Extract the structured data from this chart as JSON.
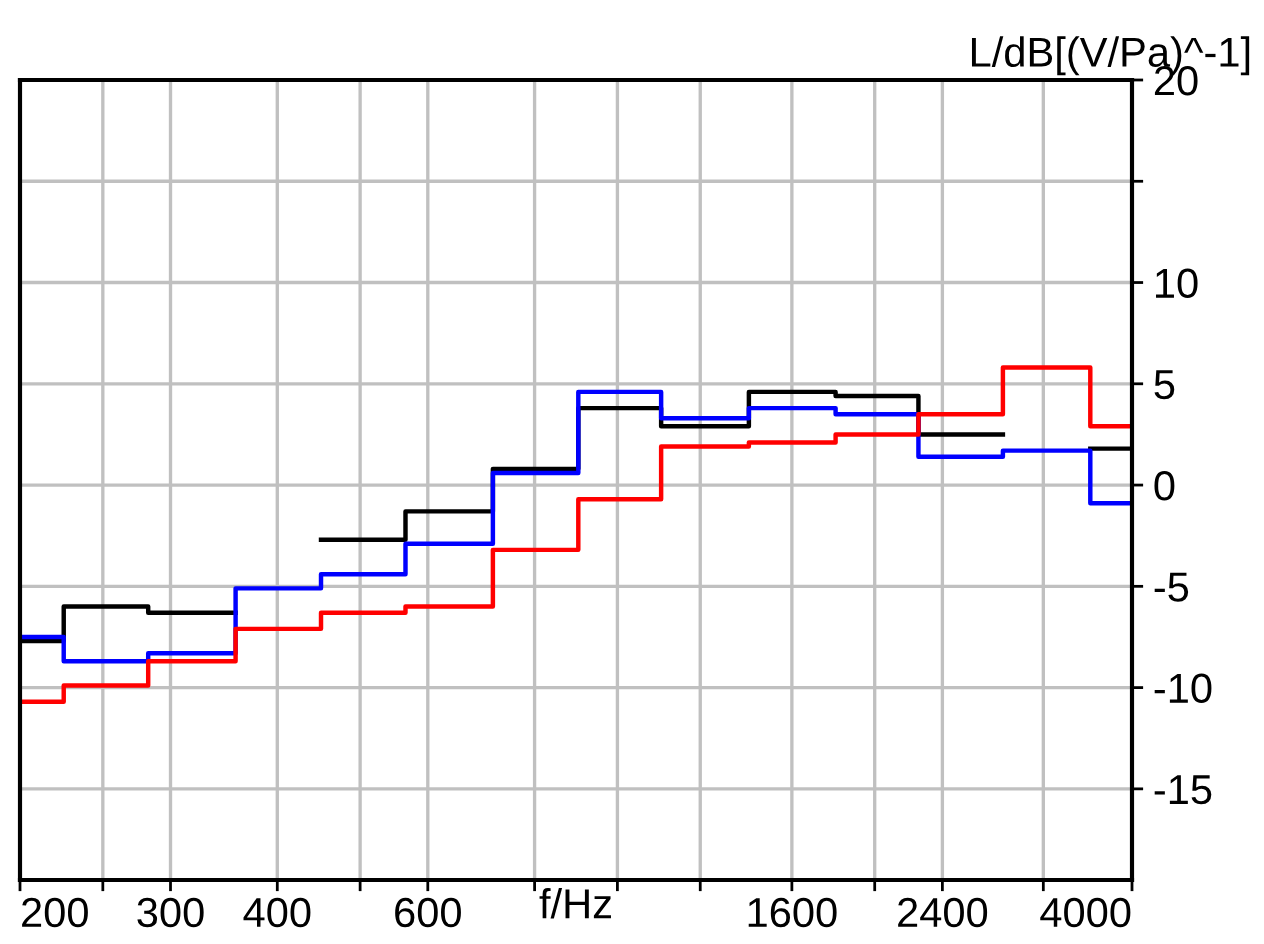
{
  "chart_data": {
    "type": "step",
    "xlabel": "f/Hz",
    "ylabel": "L/dB[(V/Pa)^-1]",
    "x": [
      200,
      250,
      315,
      400,
      500,
      630,
      800,
      1000,
      1250,
      1600,
      2000,
      2500,
      3150,
      4000
    ],
    "series": [
      {
        "color": "#000000",
        "values": [
          -7.7,
          -6.0,
          -6.3,
          null,
          -2.7,
          -1.3,
          0.8,
          3.8,
          2.9,
          4.6,
          4.4,
          2.5,
          null,
          1.8
        ]
      },
      {
        "color": "#0000ff",
        "values": [
          -7.5,
          -8.7,
          -8.3,
          -5.1,
          -4.4,
          -2.9,
          0.6,
          4.6,
          3.3,
          3.8,
          3.5,
          1.4,
          1.7,
          -0.9
        ]
      },
      {
        "color": "#ff0000",
        "values": [
          -10.7,
          -9.9,
          -8.7,
          -7.1,
          -6.3,
          -6.0,
          -3.2,
          -0.7,
          1.9,
          2.1,
          2.5,
          3.5,
          5.8,
          2.9
        ]
      }
    ],
    "log": "x",
    "xlim": [
      200,
      4000
    ],
    "xticks": [
      200,
      {
        "value": 250,
        "label": null
      },
      300,
      400,
      {
        "value": 500,
        "label": null
      },
      600,
      {
        "value": 800,
        "label": null
      },
      {
        "value": 1000,
        "label": null
      },
      {
        "value": 1250,
        "label": null
      },
      1600,
      {
        "value": 2000,
        "label": null
      },
      2400,
      {
        "value": 3150,
        "label": null
      },
      4000
    ],
    "ylim": [
      -19.5,
      20
    ],
    "yticks": [
      20,
      {
        "value": 15,
        "label": null
      },
      10,
      5,
      0,
      -5,
      -10,
      -15
    ],
    "grid": true
  }
}
